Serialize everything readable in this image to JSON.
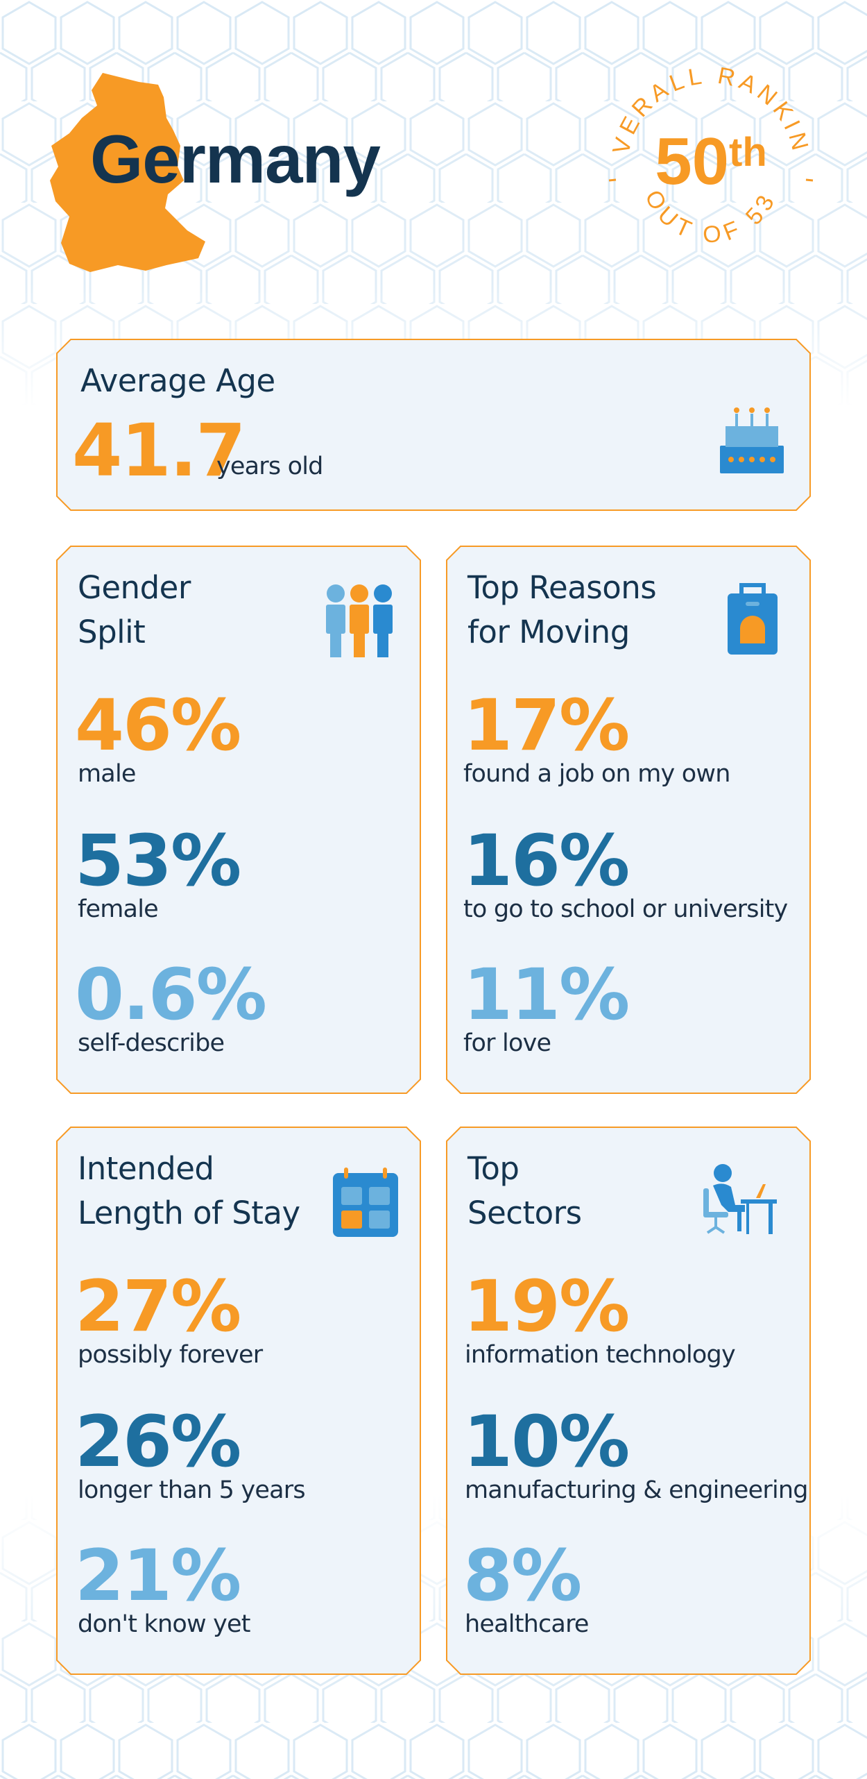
{
  "country": "Germany",
  "ranking": {
    "arc_top": "OVERALL RANKING",
    "arc_bottom": "OUT OF 53",
    "number": "50",
    "suffix": "th"
  },
  "average_age": {
    "title": "Average Age",
    "value": "41.7",
    "unit": "years old",
    "icon": "cake-icon"
  },
  "gender": {
    "title_line1": "Gender",
    "title_line2": "Split",
    "icon": "people-icon",
    "stats": [
      {
        "value": "46%",
        "label": "male"
      },
      {
        "value": "53%",
        "label": "female"
      },
      {
        "value": "0.6%",
        "label": "self-describe"
      }
    ]
  },
  "reasons": {
    "title_line1": "Top Reasons",
    "title_line2": "for Moving",
    "icon": "suitcase-icon",
    "stats": [
      {
        "value": "17%",
        "label": "found a job on my own"
      },
      {
        "value": "16%",
        "label": "to go to school or university"
      },
      {
        "value": "11%",
        "label": "for love"
      }
    ]
  },
  "stay": {
    "title_line1": "Intended",
    "title_line2": "Length of Stay",
    "icon": "calendar-icon",
    "stats": [
      {
        "value": "27%",
        "label": "possibly forever"
      },
      {
        "value": "26%",
        "label": "longer than 5 years"
      },
      {
        "value": "21%",
        "label": "don't know yet"
      }
    ]
  },
  "sectors": {
    "title_line1": "Top",
    "title_line2": "Sectors",
    "icon": "desk-worker-icon",
    "stats": [
      {
        "value": "19%",
        "label": "information technology"
      },
      {
        "value": "10%",
        "label": "manufacturing & engineering"
      },
      {
        "value": "8%",
        "label": "healthcare"
      }
    ]
  },
  "colors": {
    "orange": "#f79a25",
    "dark_blue": "#1e6f9f",
    "light_blue": "#6cb2de",
    "navy": "#14344f",
    "card_bg": "#eef4fa"
  }
}
